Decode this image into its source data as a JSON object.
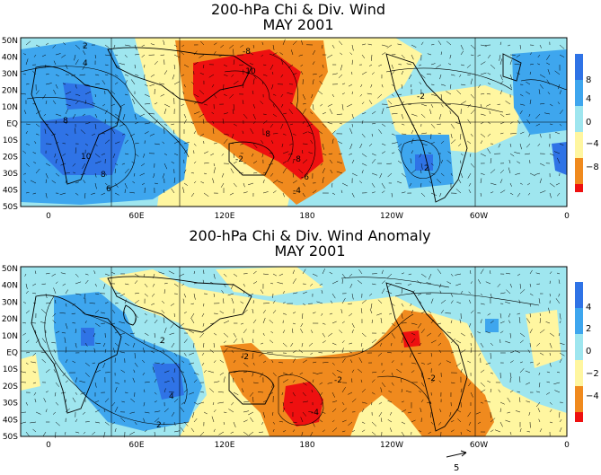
{
  "colors": {
    "deep_blue": "#2f73e6",
    "mid_blue": "#3ea6ee",
    "light_blue": "#9fe6ef",
    "light_yellow": "#fff6a0",
    "orange": "#f08a1e",
    "red": "#ee1010",
    "land": "#000000"
  },
  "axes": {
    "lat_labels": [
      "50N",
      "40N",
      "30N",
      "20N",
      "10N",
      "EQ",
      "10S",
      "20S",
      "30S",
      "40S",
      "50S"
    ],
    "lon_labels": [
      "0",
      "60E",
      "120E",
      "180",
      "120W",
      "60W",
      "0"
    ]
  },
  "top_panel": {
    "title_line1": "200-hPa Chi & Div. Wind",
    "title_line2": "MAY 2001",
    "colorbar_labels": [
      "8",
      "4",
      "0",
      "−4",
      "−8"
    ],
    "contour_labels": [
      "-8",
      "-10",
      "-8",
      "-8",
      "-6",
      "-4",
      "-2",
      "-2",
      "2",
      "8",
      "10",
      "8",
      "6",
      "4",
      "2"
    ]
  },
  "bottom_panel": {
    "title_line1": "200-hPa Chi & Div. Wind Anomaly",
    "title_line2": "MAY 2001",
    "colorbar_labels": [
      "4",
      "2",
      "0",
      "−2",
      "−4"
    ],
    "contour_labels": [
      "2",
      "4",
      "2",
      "-2",
      "-4",
      "-2",
      "-2"
    ]
  },
  "reference_vector": {
    "label": "5"
  }
}
